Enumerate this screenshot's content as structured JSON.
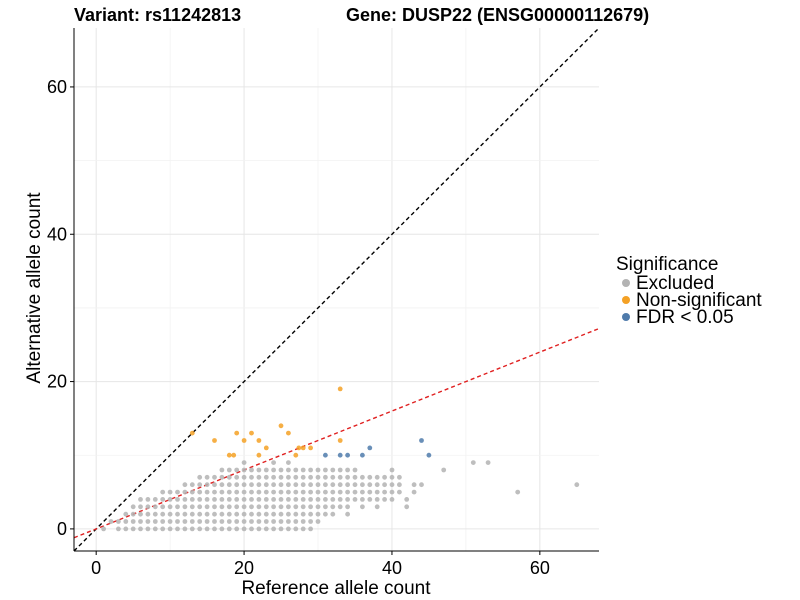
{
  "chart_data": {
    "type": "scatter",
    "title_left": "Variant: rs11242813",
    "title_right": "Gene: DUSP22 (ENSG00000112679)",
    "xlabel": "Reference allele count",
    "ylabel": "Alternative allele count",
    "xlim": [
      -3,
      68
    ],
    "ylim": [
      -3,
      68
    ],
    "x_ticks": [
      0,
      20,
      40,
      60
    ],
    "y_ticks": [
      0,
      20,
      40,
      60
    ],
    "grid": true,
    "legend": {
      "title": "Significance",
      "placement": "right",
      "entries": [
        {
          "label": "Excluded",
          "color": "#b3b3b3"
        },
        {
          "label": "Non-significant",
          "color": "#f4a125"
        },
        {
          "label": "FDR < 0.05",
          "color": "#4f7bab"
        }
      ]
    },
    "reference_lines": [
      {
        "name": "identity",
        "slope": 1,
        "intercept": 0,
        "color": "#000000",
        "style": "dashed"
      },
      {
        "name": "fit",
        "slope": 0.4,
        "intercept": 0,
        "color": "#e02020",
        "style": "dashed"
      }
    ],
    "series": [
      {
        "name": "Excluded",
        "color": "#b3b3b3",
        "points": [
          [
            1,
            0
          ],
          [
            2,
            1
          ],
          [
            3,
            0
          ],
          [
            3,
            1
          ],
          [
            4,
            0
          ],
          [
            4,
            1
          ],
          [
            4,
            2
          ],
          [
            5,
            0
          ],
          [
            5,
            1
          ],
          [
            5,
            2
          ],
          [
            5,
            3
          ],
          [
            6,
            0
          ],
          [
            6,
            1
          ],
          [
            6,
            2
          ],
          [
            6,
            3
          ],
          [
            6,
            4
          ],
          [
            7,
            0
          ],
          [
            7,
            1
          ],
          [
            7,
            2
          ],
          [
            7,
            3
          ],
          [
            7,
            4
          ],
          [
            8,
            0
          ],
          [
            8,
            1
          ],
          [
            8,
            2
          ],
          [
            8,
            3
          ],
          [
            8,
            4
          ],
          [
            9,
            0
          ],
          [
            9,
            1
          ],
          [
            9,
            2
          ],
          [
            9,
            3
          ],
          [
            9,
            4
          ],
          [
            9,
            5
          ],
          [
            10,
            0
          ],
          [
            10,
            1
          ],
          [
            10,
            2
          ],
          [
            10,
            3
          ],
          [
            10,
            4
          ],
          [
            10,
            5
          ],
          [
            11,
            0
          ],
          [
            11,
            1
          ],
          [
            11,
            2
          ],
          [
            11,
            3
          ],
          [
            11,
            4
          ],
          [
            11,
            5
          ],
          [
            12,
            0
          ],
          [
            12,
            1
          ],
          [
            12,
            2
          ],
          [
            12,
            3
          ],
          [
            12,
            4
          ],
          [
            12,
            5
          ],
          [
            12,
            6
          ],
          [
            13,
            0
          ],
          [
            13,
            1
          ],
          [
            13,
            2
          ],
          [
            13,
            3
          ],
          [
            13,
            4
          ],
          [
            13,
            5
          ],
          [
            13,
            6
          ],
          [
            14,
            0
          ],
          [
            14,
            1
          ],
          [
            14,
            2
          ],
          [
            14,
            3
          ],
          [
            14,
            4
          ],
          [
            14,
            5
          ],
          [
            14,
            6
          ],
          [
            14,
            7
          ],
          [
            15,
            0
          ],
          [
            15,
            1
          ],
          [
            15,
            2
          ],
          [
            15,
            3
          ],
          [
            15,
            4
          ],
          [
            15,
            5
          ],
          [
            15,
            6
          ],
          [
            15,
            7
          ],
          [
            16,
            0
          ],
          [
            16,
            1
          ],
          [
            16,
            2
          ],
          [
            16,
            3
          ],
          [
            16,
            4
          ],
          [
            16,
            5
          ],
          [
            16,
            6
          ],
          [
            16,
            7
          ],
          [
            17,
            0
          ],
          [
            17,
            1
          ],
          [
            17,
            2
          ],
          [
            17,
            3
          ],
          [
            17,
            4
          ],
          [
            17,
            5
          ],
          [
            17,
            6
          ],
          [
            17,
            7
          ],
          [
            17,
            8
          ],
          [
            18,
            0
          ],
          [
            18,
            1
          ],
          [
            18,
            2
          ],
          [
            18,
            3
          ],
          [
            18,
            4
          ],
          [
            18,
            5
          ],
          [
            18,
            6
          ],
          [
            18,
            7
          ],
          [
            18,
            8
          ],
          [
            19,
            0
          ],
          [
            19,
            1
          ],
          [
            19,
            2
          ],
          [
            19,
            3
          ],
          [
            19,
            4
          ],
          [
            19,
            5
          ],
          [
            19,
            6
          ],
          [
            19,
            7
          ],
          [
            19,
            8
          ],
          [
            20,
            0
          ],
          [
            20,
            1
          ],
          [
            20,
            2
          ],
          [
            20,
            3
          ],
          [
            20,
            4
          ],
          [
            20,
            5
          ],
          [
            20,
            6
          ],
          [
            20,
            7
          ],
          [
            20,
            8
          ],
          [
            20,
            9
          ],
          [
            21,
            0
          ],
          [
            21,
            1
          ],
          [
            21,
            2
          ],
          [
            21,
            3
          ],
          [
            21,
            4
          ],
          [
            21,
            5
          ],
          [
            21,
            6
          ],
          [
            21,
            7
          ],
          [
            21,
            8
          ],
          [
            22,
            0
          ],
          [
            22,
            1
          ],
          [
            22,
            2
          ],
          [
            22,
            3
          ],
          [
            22,
            4
          ],
          [
            22,
            5
          ],
          [
            22,
            6
          ],
          [
            22,
            7
          ],
          [
            22,
            8
          ],
          [
            23,
            0
          ],
          [
            23,
            1
          ],
          [
            23,
            2
          ],
          [
            23,
            3
          ],
          [
            23,
            4
          ],
          [
            23,
            5
          ],
          [
            23,
            6
          ],
          [
            23,
            7
          ],
          [
            23,
            8
          ],
          [
            24,
            0
          ],
          [
            24,
            1
          ],
          [
            24,
            2
          ],
          [
            24,
            3
          ],
          [
            24,
            4
          ],
          [
            24,
            5
          ],
          [
            24,
            6
          ],
          [
            24,
            7
          ],
          [
            24,
            8
          ],
          [
            24,
            9
          ],
          [
            25,
            0
          ],
          [
            25,
            1
          ],
          [
            25,
            2
          ],
          [
            25,
            3
          ],
          [
            25,
            4
          ],
          [
            25,
            5
          ],
          [
            25,
            6
          ],
          [
            25,
            7
          ],
          [
            25,
            8
          ],
          [
            26,
            0
          ],
          [
            26,
            1
          ],
          [
            26,
            2
          ],
          [
            26,
            3
          ],
          [
            26,
            4
          ],
          [
            26,
            5
          ],
          [
            26,
            6
          ],
          [
            26,
            7
          ],
          [
            26,
            8
          ],
          [
            26,
            9
          ],
          [
            27,
            0
          ],
          [
            27,
            1
          ],
          [
            27,
            2
          ],
          [
            27,
            3
          ],
          [
            27,
            4
          ],
          [
            27,
            5
          ],
          [
            27,
            6
          ],
          [
            27,
            7
          ],
          [
            27,
            8
          ],
          [
            28,
            0
          ],
          [
            28,
            1
          ],
          [
            28,
            2
          ],
          [
            28,
            3
          ],
          [
            28,
            4
          ],
          [
            28,
            5
          ],
          [
            28,
            6
          ],
          [
            28,
            7
          ],
          [
            28,
            8
          ],
          [
            29,
            0
          ],
          [
            29,
            1
          ],
          [
            29,
            2
          ],
          [
            29,
            3
          ],
          [
            29,
            4
          ],
          [
            29,
            5
          ],
          [
            29,
            6
          ],
          [
            29,
            7
          ],
          [
            29,
            8
          ],
          [
            30,
            1
          ],
          [
            30,
            2
          ],
          [
            30,
            3
          ],
          [
            30,
            4
          ],
          [
            30,
            5
          ],
          [
            30,
            6
          ],
          [
            30,
            7
          ],
          [
            30,
            8
          ],
          [
            31,
            2
          ],
          [
            31,
            3
          ],
          [
            31,
            4
          ],
          [
            31,
            5
          ],
          [
            31,
            6
          ],
          [
            31,
            7
          ],
          [
            31,
            8
          ],
          [
            32,
            2
          ],
          [
            32,
            3
          ],
          [
            32,
            4
          ],
          [
            32,
            5
          ],
          [
            32,
            6
          ],
          [
            32,
            7
          ],
          [
            32,
            8
          ],
          [
            33,
            3
          ],
          [
            33,
            4
          ],
          [
            33,
            5
          ],
          [
            33,
            6
          ],
          [
            33,
            7
          ],
          [
            33,
            8
          ],
          [
            34,
            2
          ],
          [
            34,
            3
          ],
          [
            34,
            4
          ],
          [
            34,
            5
          ],
          [
            34,
            6
          ],
          [
            34,
            7
          ],
          [
            34,
            8
          ],
          [
            35,
            4
          ],
          [
            35,
            5
          ],
          [
            35,
            6
          ],
          [
            35,
            7
          ],
          [
            35,
            8
          ],
          [
            36,
            3
          ],
          [
            36,
            4
          ],
          [
            36,
            5
          ],
          [
            36,
            6
          ],
          [
            36,
            7
          ],
          [
            37,
            4
          ],
          [
            37,
            5
          ],
          [
            37,
            6
          ],
          [
            37,
            7
          ],
          [
            38,
            3
          ],
          [
            38,
            4
          ],
          [
            38,
            5
          ],
          [
            38,
            6
          ],
          [
            38,
            7
          ],
          [
            39,
            4
          ],
          [
            39,
            5
          ],
          [
            39,
            6
          ],
          [
            39,
            7
          ],
          [
            40,
            4
          ],
          [
            40,
            5
          ],
          [
            40,
            6
          ],
          [
            40,
            7
          ],
          [
            40,
            8
          ],
          [
            41,
            5
          ],
          [
            41,
            6
          ],
          [
            41,
            7
          ],
          [
            42,
            3
          ],
          [
            42,
            4
          ],
          [
            43,
            5
          ],
          [
            43,
            6
          ],
          [
            44,
            6
          ],
          [
            47,
            8
          ],
          [
            51,
            9
          ],
          [
            53,
            9
          ],
          [
            57,
            5
          ],
          [
            65,
            6
          ]
        ]
      },
      {
        "name": "Non-significant",
        "color": "#f4a125",
        "points": [
          [
            13,
            13
          ],
          [
            16,
            12
          ],
          [
            18,
            10
          ],
          [
            18.6,
            10
          ],
          [
            19,
            13
          ],
          [
            20,
            12
          ],
          [
            21,
            13
          ],
          [
            22,
            12
          ],
          [
            22,
            10
          ],
          [
            23,
            11
          ],
          [
            25,
            14
          ],
          [
            26,
            13
          ],
          [
            27,
            10
          ],
          [
            27.4,
            11
          ],
          [
            28,
            11
          ],
          [
            29,
            11
          ],
          [
            33,
            12
          ],
          [
            33,
            19
          ]
        ]
      },
      {
        "name": "FDR < 0.05",
        "color": "#4f7bab",
        "points": [
          [
            31,
            10
          ],
          [
            33,
            10
          ],
          [
            34,
            10
          ],
          [
            36,
            10
          ],
          [
            37,
            11
          ],
          [
            44,
            12
          ],
          [
            45,
            10
          ]
        ]
      }
    ]
  }
}
